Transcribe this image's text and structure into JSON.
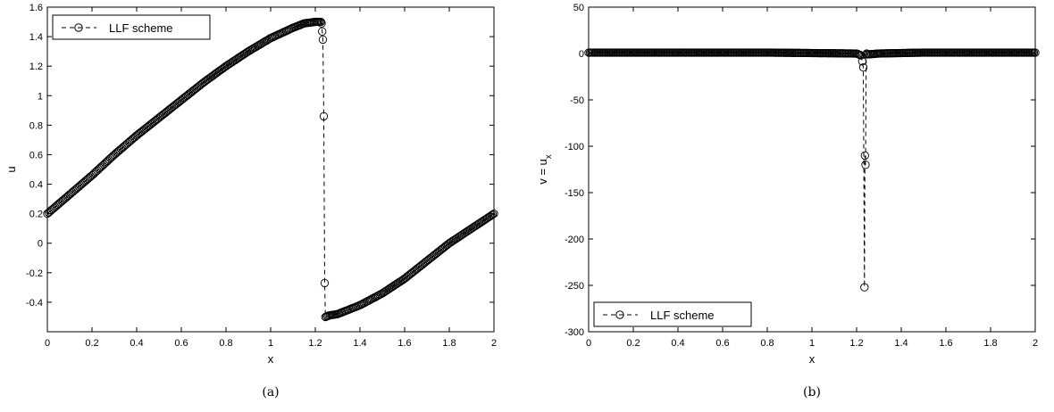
{
  "chart_data": [
    {
      "type": "line",
      "caption": "(a)",
      "xlabel": "x",
      "ylabel": "u",
      "xlim": [
        0,
        2
      ],
      "ylim": [
        -0.6,
        1.6
      ],
      "xticks": [
        "0",
        "0.2",
        "0.4",
        "0.6",
        "0.8",
        "1",
        "1.2",
        "1.4",
        "1.6",
        "1.8",
        "2"
      ],
      "yticks": [
        "-0.4",
        "-0.2",
        "0",
        "0.2",
        "0.4",
        "0.6",
        "0.8",
        "1",
        "1.2",
        "1.4",
        "1.6"
      ],
      "legend": {
        "label": "LLF scheme",
        "position": "top-left"
      },
      "grid": false,
      "series": [
        {
          "name": "LLF scheme",
          "x": [
            0,
            0.1,
            0.2,
            0.3,
            0.4,
            0.5,
            0.6,
            0.7,
            0.8,
            0.9,
            1.0,
            1.1,
            1.15,
            1.2,
            1.225,
            1.228,
            1.234,
            1.238,
            1.242,
            1.245,
            1.26,
            1.3,
            1.4,
            1.5,
            1.6,
            1.7,
            1.8,
            1.9,
            2.0
          ],
          "y": [
            0.2,
            0.33,
            0.46,
            0.6,
            0.73,
            0.85,
            0.97,
            1.09,
            1.2,
            1.3,
            1.39,
            1.46,
            1.49,
            1.5,
            1.5,
            1.49,
            1.38,
            0.86,
            -0.27,
            -0.5,
            -0.49,
            -0.48,
            -0.42,
            -0.34,
            -0.24,
            -0.12,
            0.0,
            0.1,
            0.2
          ]
        }
      ]
    },
    {
      "type": "line",
      "caption": "(b)",
      "xlabel": "x",
      "ylabel": "v = u",
      "ylabel_subscript": "x",
      "xlim": [
        0,
        2
      ],
      "ylim": [
        -300,
        50
      ],
      "xticks": [
        "0",
        "0.2",
        "0.4",
        "0.6",
        "0.8",
        "1",
        "1.2",
        "1.4",
        "1.6",
        "1.8",
        "2"
      ],
      "yticks": [
        "-300",
        "-250",
        "-200",
        "-150",
        "-100",
        "-50",
        "0",
        "50"
      ],
      "legend": {
        "label": "LLF scheme",
        "position": "bottom-left"
      },
      "grid": false,
      "series": [
        {
          "name": "LLF scheme",
          "x": [
            0,
            0.2,
            0.4,
            0.6,
            0.8,
            1.0,
            1.2,
            1.22,
            1.23,
            1.235,
            1.237,
            1.24,
            1.243,
            1.245,
            1.25,
            1.3,
            1.5,
            1.7,
            1.9,
            2.0
          ],
          "y": [
            1,
            1,
            1,
            1,
            1,
            0.5,
            0,
            -2,
            -15,
            -252,
            -110,
            -120,
            -1,
            0,
            -1,
            0,
            1,
            1,
            1,
            1
          ]
        }
      ]
    }
  ]
}
